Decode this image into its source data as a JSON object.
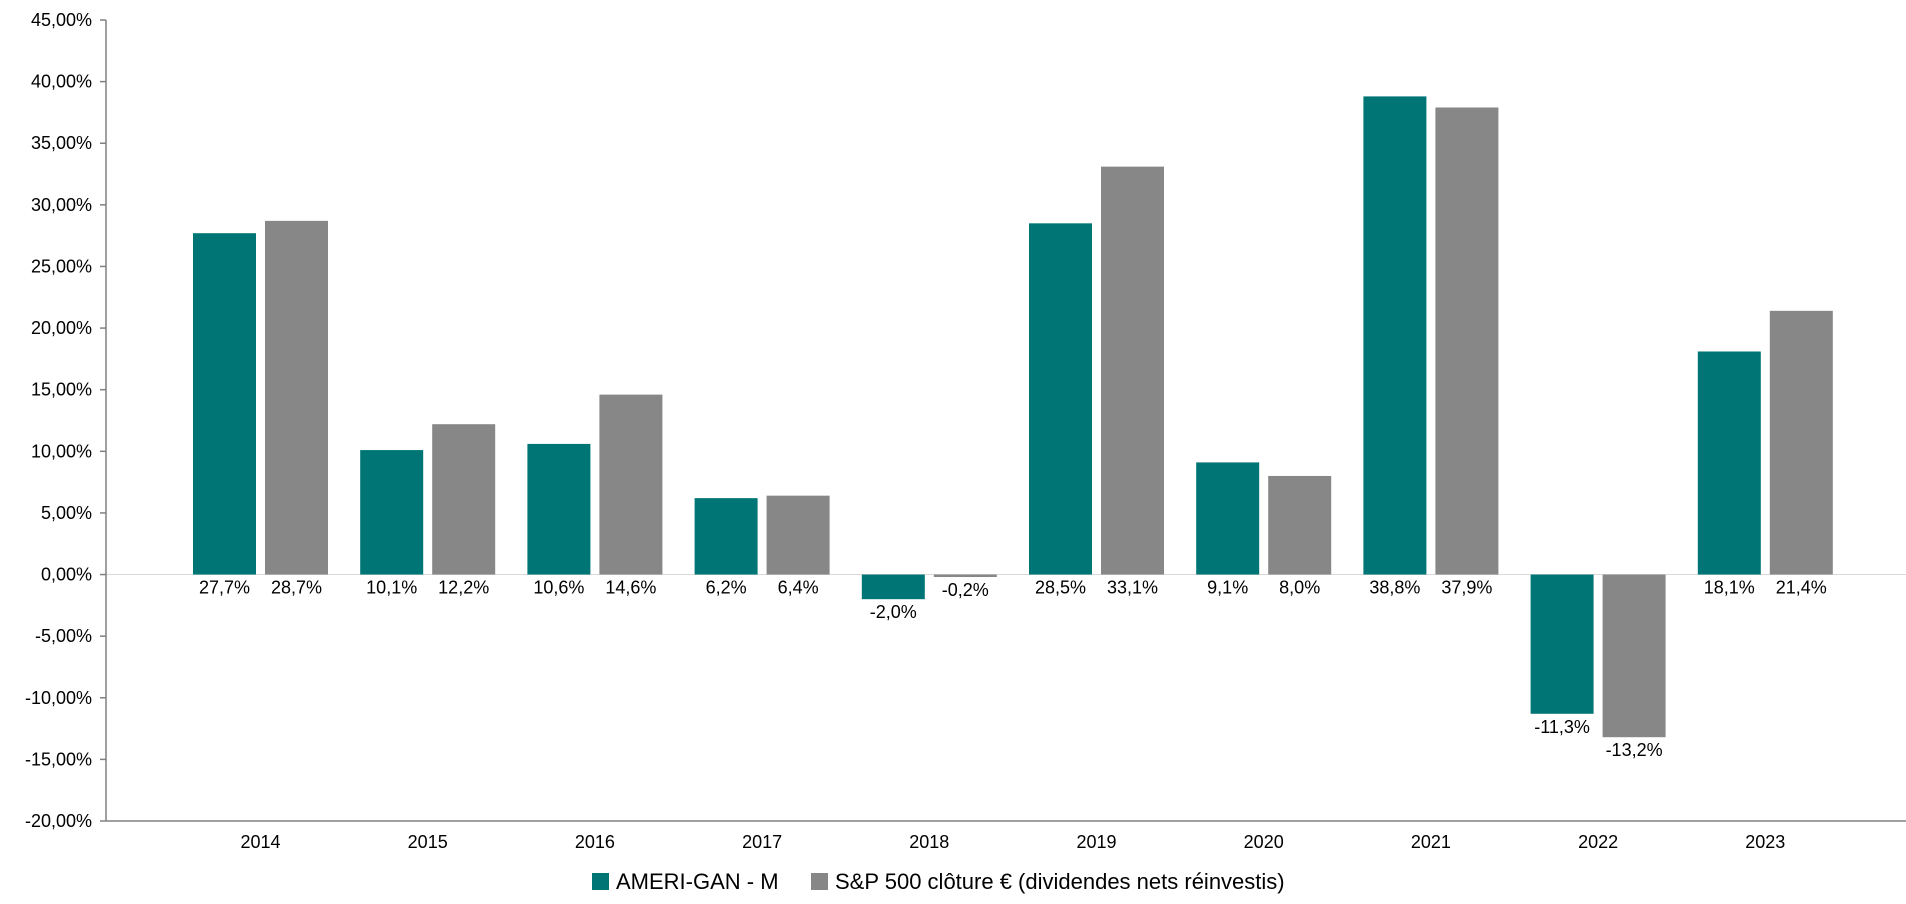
{
  "chart_data": {
    "type": "bar",
    "title": "",
    "xlabel": "",
    "ylabel": "",
    "categories": [
      "2014",
      "2015",
      "2016",
      "2017",
      "2018",
      "2019",
      "2020",
      "2021",
      "2022",
      "2023"
    ],
    "series": [
      {
        "name": "AMERI-GAN - M",
        "color": "#007575",
        "values": [
          27.7,
          10.1,
          10.6,
          6.2,
          -2.0,
          28.5,
          9.1,
          38.8,
          -11.3,
          18.1
        ],
        "labels": [
          "27,7%",
          "10,1%",
          "10,6%",
          "6,2%",
          "-2,0%",
          "28,5%",
          "9,1%",
          "38,8%",
          "-11,3%",
          "18,1%"
        ]
      },
      {
        "name": "S&P 500 clôture € (dividendes nets réinvestis)",
        "color": "#878787",
        "values": [
          28.7,
          12.2,
          14.6,
          6.4,
          -0.2,
          33.1,
          8.0,
          37.9,
          -13.2,
          21.4
        ],
        "labels": [
          "28,7%",
          "12,2%",
          "14,6%",
          "6,4%",
          "-0,2%",
          "33,1%",
          "8,0%",
          "37,9%",
          "-13,2%",
          "21,4%"
        ]
      }
    ],
    "ylim": [
      -20,
      45
    ],
    "y_ticks": [
      45,
      40,
      35,
      30,
      25,
      20,
      15,
      10,
      5,
      0,
      -5,
      -10,
      -15,
      -20
    ],
    "y_tick_labels": [
      "45,00%",
      "40,00%",
      "35,00%",
      "30,00%",
      "25,00%",
      "20,00%",
      "15,00%",
      "10,00%",
      "5,00%",
      "0,00%",
      "-5,00%",
      "-10,00%",
      "-15,00%",
      "-20,00%"
    ],
    "grid": false,
    "legend_position": "bottom"
  }
}
